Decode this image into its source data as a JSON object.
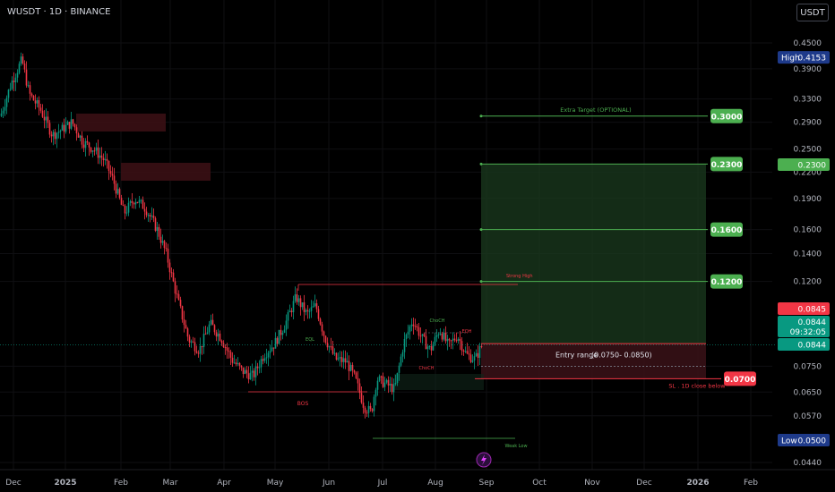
{
  "header": {
    "symbol_line": "WUSDT · 1D · BINANCE",
    "currency": "USDT"
  },
  "chart_data": {
    "type": "candlestick",
    "x_ticks": [
      "Dec",
      "2025",
      "Feb",
      "Mar",
      "Apr",
      "May",
      "Jun",
      "Jul",
      "Aug",
      "Sep",
      "Oct",
      "Nov",
      "Dec",
      "2026",
      "Feb"
    ],
    "y_ticks": [
      "0.4500",
      "0.3900",
      "0.3300",
      "0.2900",
      "0.2500",
      "0.2200",
      "0.1900",
      "0.1600",
      "0.1400",
      "0.1200",
      "0.0750",
      "0.0650",
      "0.0570",
      "0.0440"
    ],
    "y_scale": "log",
    "ylim": [
      0.042,
      0.47
    ],
    "high": {
      "label": "High",
      "value": "0.4153"
    },
    "low": {
      "label": "Low",
      "value": "0.0500"
    },
    "last_price": "0.0844",
    "countdown": "09:32:05",
    "price_badges": [
      "0.0845",
      "0.0844",
      "0.2300"
    ],
    "targets": [
      {
        "value": 0.3,
        "label": "0.3000",
        "text": "Extra Target (OPTIONAL)"
      },
      {
        "value": 0.23,
        "label": "0.2300",
        "text": ""
      },
      {
        "value": 0.16,
        "label": "0.1600",
        "text": ""
      },
      {
        "value": 0.12,
        "label": "0.1200",
        "text": ""
      }
    ],
    "stop": {
      "value": 0.07,
      "label": "0.0700",
      "text": "SL . 1D close below"
    },
    "entry": {
      "text": "Entry range",
      "range": "(0.0750- 0.0850)",
      "low": 0.075,
      "high": 0.085
    },
    "annotations": [
      "Strong High",
      "BOS",
      "Weak Low",
      "ChoCH",
      "EQH",
      "EQL",
      "ChoCH"
    ],
    "colors": {
      "up": "#089981",
      "down": "#f23645",
      "target": "#4caf50",
      "stop": "#f23645",
      "zone_green": "#1b3b1f",
      "zone_red": "#3a1218"
    }
  }
}
